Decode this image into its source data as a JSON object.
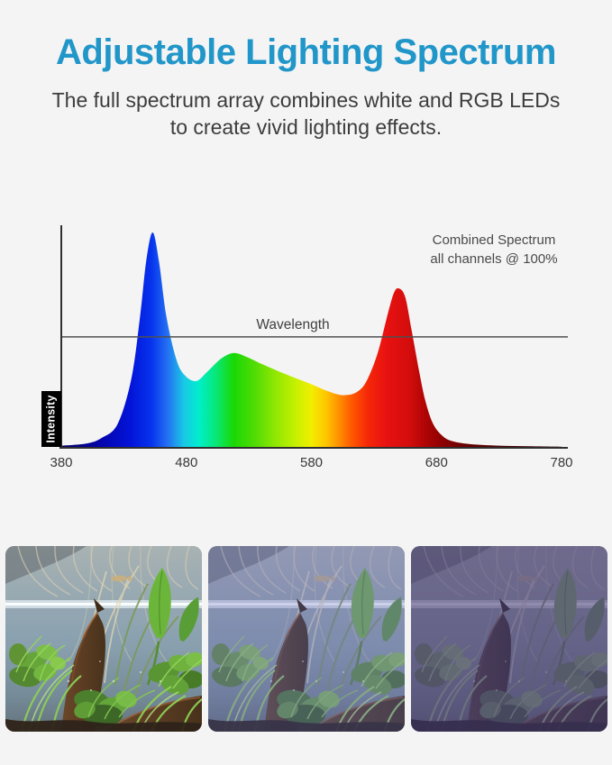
{
  "page": {
    "background": "#f4f4f4"
  },
  "header": {
    "title": "Adjustable Lighting Spectrum",
    "title_color": "#2196c9",
    "subtitle_line1": "The full spectrum array combines white and RGB LEDs",
    "subtitle_line2": "to create vivid lighting effects."
  },
  "chart_data": {
    "type": "area",
    "annotation_line1": "Combined Spectrum",
    "annotation_line2": "all channels @ 100%",
    "xlabel": "Wavelength",
    "ylabel": "Intensity",
    "x_ticks": [
      380,
      480,
      580,
      680,
      780
    ],
    "x_range": [
      380,
      780
    ],
    "y_range": [
      0,
      1
    ],
    "grid": false,
    "wavelength_line_intensity": 0.515,
    "axis_color": "#2f2f2f",
    "wavelength_line_color": "#4f4f4f",
    "curve": [
      [
        380,
        0.01
      ],
      [
        400,
        0.02
      ],
      [
        412,
        0.045
      ],
      [
        425,
        0.11
      ],
      [
        436,
        0.32
      ],
      [
        443,
        0.61
      ],
      [
        448,
        0.87
      ],
      [
        453,
        1.0
      ],
      [
        458,
        0.87
      ],
      [
        464,
        0.61
      ],
      [
        472,
        0.41
      ],
      [
        479,
        0.335
      ],
      [
        488,
        0.31
      ],
      [
        497,
        0.355
      ],
      [
        508,
        0.415
      ],
      [
        518,
        0.44
      ],
      [
        529,
        0.42
      ],
      [
        540,
        0.39
      ],
      [
        554,
        0.355
      ],
      [
        569,
        0.32
      ],
      [
        580,
        0.295
      ],
      [
        590,
        0.27
      ],
      [
        601,
        0.248
      ],
      [
        608,
        0.245
      ],
      [
        615,
        0.255
      ],
      [
        622,
        0.29
      ],
      [
        628,
        0.36
      ],
      [
        634,
        0.46
      ],
      [
        641,
        0.62
      ],
      [
        646,
        0.72
      ],
      [
        650,
        0.74
      ],
      [
        655,
        0.7
      ],
      [
        660,
        0.55
      ],
      [
        666,
        0.36
      ],
      [
        671,
        0.22
      ],
      [
        677,
        0.115
      ],
      [
        684,
        0.06
      ],
      [
        692,
        0.032
      ],
      [
        706,
        0.018
      ],
      [
        730,
        0.01
      ],
      [
        755,
        0.007
      ],
      [
        780,
        0.005
      ]
    ],
    "gradient_stops": [
      [
        380,
        "#050063"
      ],
      [
        410,
        "#0404a8"
      ],
      [
        435,
        "#0313d8"
      ],
      [
        452,
        "#0633ee"
      ],
      [
        465,
        "#2470f2"
      ],
      [
        478,
        "#19c8e6"
      ],
      [
        490,
        "#00eecc"
      ],
      [
        503,
        "#07e87c"
      ],
      [
        518,
        "#1ad805"
      ],
      [
        535,
        "#52dc04"
      ],
      [
        552,
        "#93e802"
      ],
      [
        568,
        "#c8f000"
      ],
      [
        580,
        "#f2ee00"
      ],
      [
        592,
        "#ffc400"
      ],
      [
        602,
        "#ff9000"
      ],
      [
        612,
        "#ff5a00"
      ],
      [
        625,
        "#f52808"
      ],
      [
        640,
        "#e81111"
      ],
      [
        658,
        "#d40d0d"
      ],
      [
        672,
        "#ad0404"
      ],
      [
        685,
        "#8c0202"
      ],
      [
        705,
        "#650000"
      ],
      [
        735,
        "#470000"
      ],
      [
        780,
        "#300000"
      ]
    ]
  },
  "photos": [
    {
      "id": "white-light-scene",
      "tint": "#fff3d6",
      "tint_opacity": 0.07
    },
    {
      "id": "cool-rgb-scene",
      "tint": "#7e86ea",
      "tint_opacity": 0.3
    },
    {
      "id": "blue-purple-scene",
      "tint": "#6b4fe6",
      "tint_opacity": 0.52
    }
  ]
}
